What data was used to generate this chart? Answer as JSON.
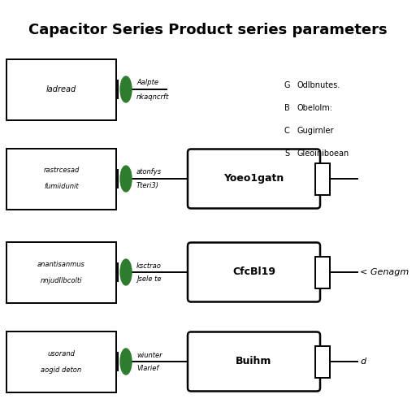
{
  "title": "Capacitor Series Product series parameters",
  "background_color": "#ffffff",
  "rows": [
    {
      "left_box_lines": [
        "ladread"
      ],
      "connector_label_top": "Aalpte",
      "connector_label_bot": "nkaqncrft",
      "has_right_box": false,
      "right_box_text": "",
      "right_annotation": ""
    },
    {
      "left_box_lines": [
        "rastrcesad",
        "fumiidunit"
      ],
      "connector_label_top": "atonfys",
      "connector_label_bot": "Tteri3)",
      "has_right_box": true,
      "right_box_text": "Yoeo1gatn",
      "right_annotation": ""
    },
    {
      "left_box_lines": [
        "anantisanmus",
        "nnjudIlbcolti"
      ],
      "connector_label_top": "ksctrao",
      "connector_label_bot": "Jsele te",
      "has_right_box": true,
      "right_box_text": "CfcBl19",
      "right_annotation": "< Genagm"
    },
    {
      "left_box_lines": [
        "usorand",
        "aogid deton"
      ],
      "connector_label_top": "wiunter",
      "connector_label_bot": "VIarief",
      "has_right_box": true,
      "right_box_text": "Buihm",
      "right_annotation": "d"
    }
  ],
  "legend": [
    [
      "G",
      "Odlbnutes."
    ],
    [
      "B",
      "Obelolm:"
    ],
    [
      "C",
      "Gugirnler"
    ],
    [
      "S",
      "Gleoiniboean"
    ]
  ],
  "connector_color": "#2e7d2e",
  "box_edge_color": "#000000",
  "text_color": "#000000",
  "line_color": "#000000"
}
